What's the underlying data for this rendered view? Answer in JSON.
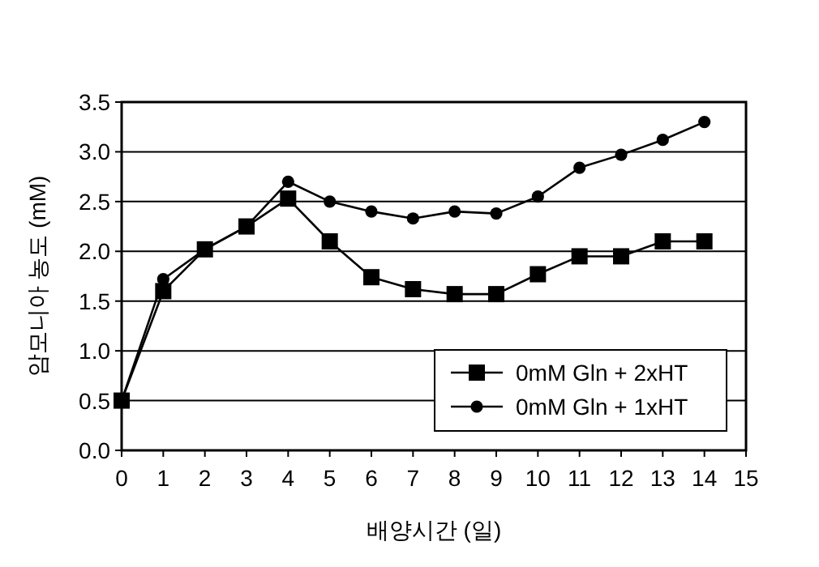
{
  "chart_data": {
    "type": "line",
    "xlabel": "배양시간 (일)",
    "ylabel": "암모니아 농도 (mM)",
    "x": [
      0,
      1,
      2,
      3,
      4,
      5,
      6,
      7,
      8,
      9,
      10,
      11,
      12,
      13,
      14
    ],
    "xlim": [
      0,
      15
    ],
    "xticks": [
      0,
      1,
      2,
      3,
      4,
      5,
      6,
      7,
      8,
      9,
      10,
      11,
      12,
      13,
      14,
      15
    ],
    "ylim": [
      0,
      3.5
    ],
    "yticks": [
      {
        "value": 0,
        "label": "0.0"
      },
      0.5,
      {
        "value": 1,
        "label": "1.0"
      },
      1.5,
      {
        "value": 2,
        "label": "2.0"
      },
      2.5,
      {
        "value": 3,
        "label": "3.0"
      },
      3.5
    ],
    "grid": "y",
    "legend": "bottom right",
    "line_style": "solid",
    "series": [
      {
        "name": "0mM Gln + 2xHT",
        "color": "#000000",
        "marker": "square",
        "values": [
          0.5,
          1.6,
          2.02,
          2.25,
          2.53,
          2.1,
          1.74,
          1.62,
          1.57,
          1.57,
          1.77,
          1.95,
          1.95,
          2.1,
          2.1
        ]
      },
      {
        "name": "0mM Gln + 1xHT",
        "color": "#000000",
        "marker": "circle",
        "values": [
          0.5,
          1.72,
          2.02,
          2.25,
          2.7,
          2.5,
          2.4,
          2.33,
          2.4,
          2.38,
          2.55,
          2.84,
          2.97,
          3.12,
          3.3
        ]
      }
    ]
  }
}
